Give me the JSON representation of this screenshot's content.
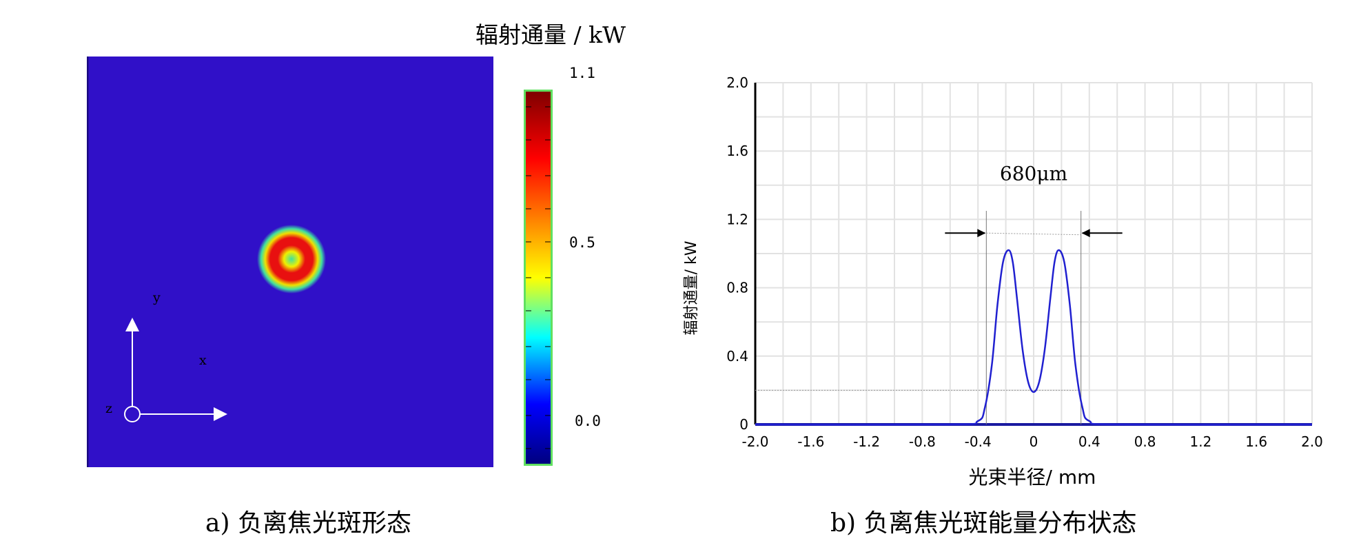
{
  "panel_a": {
    "colorbar_title": "辐射通量 / kW",
    "colorbar_ticks": [
      "1.1",
      "0.5",
      "0.0"
    ],
    "axis_labels": {
      "y": "y",
      "x": "x",
      "z": "z"
    },
    "caption": "a) 负离焦光斑形态",
    "colors": {
      "background": "#3010c8",
      "ring": "#e01010",
      "colormap": [
        "#00007f",
        "#0000ff",
        "#00ffff",
        "#ffff00",
        "#ff7f00",
        "#ff0000",
        "#7f0000"
      ]
    }
  },
  "panel_b": {
    "caption": "b) 负离焦光斑能量分布状态",
    "annotation": "680μm",
    "xlabel": "光束半径/ mm",
    "ylabel": "辐射通量/ kW"
  },
  "chart_data": {
    "type": "line",
    "xlabel": "光束半径/ mm",
    "ylabel": "辐射通量/ kW",
    "xlim": [
      -2.0,
      2.0
    ],
    "ylim": [
      0,
      2.0
    ],
    "x_ticks": [
      "-2.0",
      "-1.6",
      "-1.2",
      "-0.8",
      "-0.4",
      "0",
      "0.4",
      "0.8",
      "1.2",
      "1.6",
      "2.0"
    ],
    "y_ticks": [
      "0",
      "0.4",
      "0.8",
      "1.2",
      "1.6",
      "2.0"
    ],
    "grid": true,
    "line_color": "#2020d0",
    "series": [
      {
        "x": [
          -2.0,
          -0.6,
          -0.4,
          -0.35,
          -0.3,
          -0.26,
          -0.22,
          -0.18,
          -0.15,
          -0.12,
          -0.08,
          -0.04,
          0,
          0.04,
          0.08,
          0.12,
          0.15,
          0.18,
          0.22,
          0.26,
          0.3,
          0.35,
          0.4,
          0.6,
          2.0
        ],
        "y": [
          0,
          0,
          0.02,
          0.1,
          0.35,
          0.7,
          0.95,
          1.02,
          0.95,
          0.74,
          0.44,
          0.25,
          0.19,
          0.25,
          0.44,
          0.74,
          0.95,
          1.02,
          0.95,
          0.7,
          0.35,
          0.1,
          0.02,
          0,
          0
        ]
      }
    ],
    "annotations": [
      {
        "text": "680μm",
        "x_from": -0.34,
        "x_to": 0.34
      }
    ]
  }
}
